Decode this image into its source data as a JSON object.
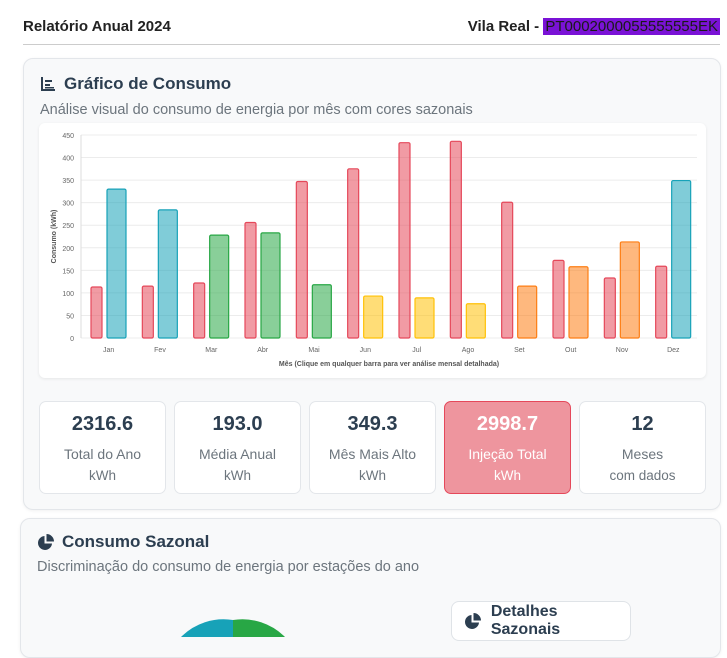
{
  "header": {
    "title": "Relatório Anual 2024",
    "location": "Vila Real - ",
    "code": "PT0002000055555555EK"
  },
  "consumption_card": {
    "title": "Gráfico de Consumo",
    "subtitle": "Análise visual do consumo de energia por mês com cores sazonais"
  },
  "chart_data": {
    "type": "bar",
    "ylabel": "Consumo (kWh)",
    "xlabel": "Mês (Clique em qualquer barra para ver análise mensal detalhada)",
    "ylim": [
      0,
      450
    ],
    "yticks": [
      0,
      50,
      100,
      150,
      200,
      250,
      300,
      350,
      400,
      450
    ],
    "grid": true,
    "categories": [
      "Jan",
      "Fev",
      "Mar",
      "Abr",
      "Mai",
      "Jun",
      "Jul",
      "Ago",
      "Set",
      "Out",
      "Nov",
      "Dez"
    ],
    "series": [
      {
        "values": [
          113,
          115,
          122,
          256,
          347,
          375,
          433,
          436,
          301,
          172,
          133,
          159
        ],
        "color": "#e5485a"
      },
      {
        "values": [
          330,
          284,
          228,
          233,
          118,
          93,
          89,
          76,
          115,
          158,
          213,
          349
        ],
        "colors": [
          "#17a2b8",
          "#17a2b8",
          "#28a745",
          "#28a745",
          "#28a745",
          "#ffc107",
          "#ffc107",
          "#ffc107",
          "#fd7e14",
          "#fd7e14",
          "#fd7e14",
          "#17a2b8"
        ]
      }
    ]
  },
  "stats": [
    {
      "value": "2316.6",
      "label": "Total do Ano",
      "unit": "kWh"
    },
    {
      "value": "193.0",
      "label": "Média Anual",
      "unit": "kWh"
    },
    {
      "value": "349.3",
      "label": "Mês Mais Alto",
      "unit": "kWh"
    },
    {
      "value": "2998.7",
      "label": "Injeção Total",
      "unit": "kWh"
    },
    {
      "value": "12",
      "label": "Meses",
      "unit": "com dados"
    }
  ],
  "seasonal_card": {
    "title": "Consumo Sazonal",
    "subtitle": "Discriminação do consumo de energia por estações do ano",
    "details_title": "Detalhes Sazonais"
  }
}
